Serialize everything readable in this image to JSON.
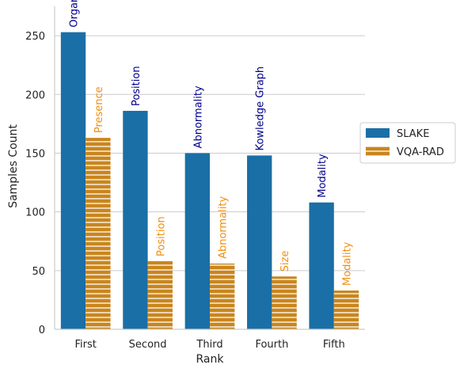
{
  "chart_data": {
    "type": "bar",
    "title": "",
    "xlabel": "Rank",
    "ylabel": "Samples Count",
    "categories": [
      "First",
      "Second",
      "Third",
      "Fourth",
      "Fifth"
    ],
    "ylim": [
      0,
      275
    ],
    "yticks": [
      0,
      50,
      100,
      150,
      200,
      250
    ],
    "grid": "horizontal",
    "legend_position": "right",
    "series": [
      {
        "name": "SLAKE",
        "color": "#1a6fa6",
        "pattern": "solid",
        "values": [
          253,
          186,
          150,
          148,
          108
        ],
        "labels": [
          "Organ",
          "Position",
          "Abnormality",
          "Kowledge Graph",
          "Modality"
        ],
        "label_color": "#00008b"
      },
      {
        "name": "VQA-RAD",
        "color": "#c9861d",
        "pattern": "horizontal-hatch",
        "values": [
          163,
          58,
          56,
          45,
          33
        ],
        "labels": [
          "Presence",
          "Position",
          "Abnormality",
          "Size",
          "Modality"
        ],
        "label_color": "#f28e0c"
      }
    ]
  }
}
